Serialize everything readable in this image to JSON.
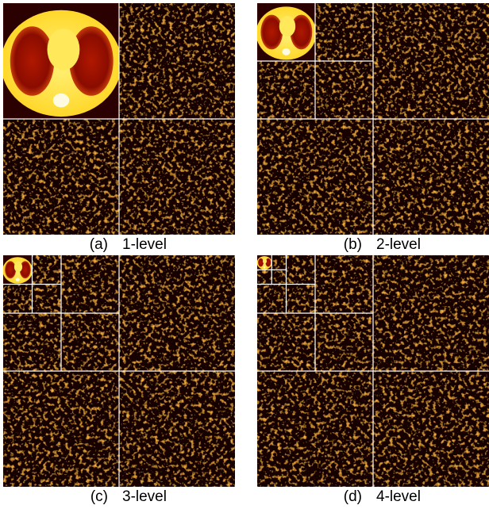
{
  "panels": [
    {
      "label": "(a)",
      "caption": "1-level"
    },
    {
      "label": "(b)",
      "caption": "2-level"
    },
    {
      "label": "(c)",
      "caption": "3-level"
    },
    {
      "label": "(d)",
      "caption": "4-level"
    }
  ]
}
